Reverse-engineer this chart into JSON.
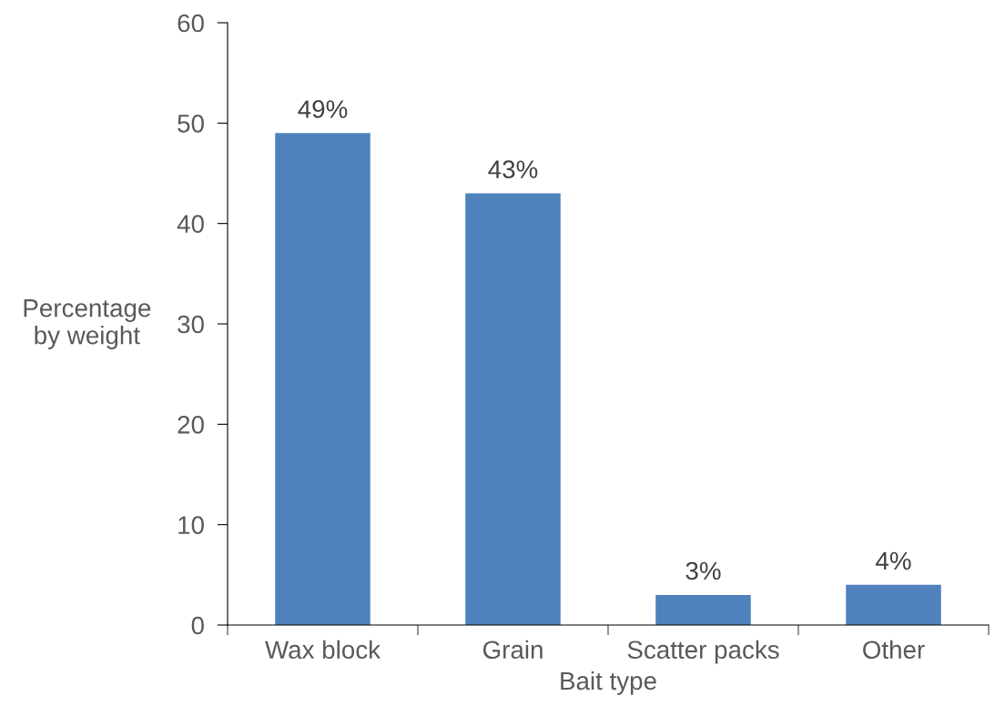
{
  "chart_data": {
    "type": "bar",
    "xlabel": "Bait type",
    "ylabel": "Percentage\nby weight",
    "categories": [
      "Wax block",
      "Grain",
      "Scatter packs",
      "Other"
    ],
    "values": [
      49,
      43,
      3,
      4
    ],
    "value_labels": [
      "49%",
      "43%",
      "3%",
      "4%"
    ],
    "color": "#4f81bd",
    "ylim": [
      0,
      60
    ],
    "yticks": [
      0,
      10,
      20,
      30,
      40,
      50,
      60
    ],
    "grid": false
  }
}
